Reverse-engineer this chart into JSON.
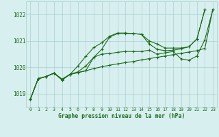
{
  "x": [
    0,
    1,
    2,
    3,
    4,
    5,
    6,
    7,
    8,
    9,
    10,
    11,
    12,
    13,
    14,
    15,
    16,
    17,
    18,
    19,
    20,
    21,
    22,
    23
  ],
  "line1": [
    1018.78,
    1019.57,
    1019.65,
    1019.78,
    1019.52,
    1019.73,
    1019.83,
    1020.05,
    1020.38,
    1020.68,
    1021.15,
    1021.28,
    1021.28,
    1021.28,
    1021.25,
    1020.88,
    1020.68,
    1020.63,
    1020.65,
    1020.7,
    1020.78,
    1021.08,
    1022.2,
    null
  ],
  "line2": [
    1018.78,
    1019.57,
    1019.65,
    1019.78,
    1019.52,
    1019.73,
    1020.05,
    1020.42,
    1020.75,
    1020.93,
    1021.18,
    1021.3,
    1021.3,
    1021.28,
    1021.25,
    1021.0,
    1020.88,
    1020.73,
    1020.73,
    1020.73,
    1020.78,
    1021.08,
    1022.2,
    null
  ],
  "line3": [
    1018.78,
    1019.57,
    1019.65,
    1019.78,
    1019.55,
    1019.73,
    1019.8,
    1019.87,
    1019.95,
    1020.02,
    1020.08,
    1020.13,
    1020.18,
    1020.22,
    1020.28,
    1020.33,
    1020.38,
    1020.43,
    1020.48,
    1020.53,
    1020.58,
    1020.63,
    1020.72,
    1022.2
  ],
  "line4": [
    1018.78,
    1019.57,
    1019.65,
    1019.78,
    1019.55,
    1019.73,
    1019.8,
    1019.87,
    1020.38,
    1020.5,
    1020.52,
    1020.57,
    1020.6,
    1020.6,
    1020.6,
    1020.65,
    1020.5,
    1020.55,
    1020.6,
    1020.32,
    1020.27,
    1020.43,
    1021.05,
    1022.2
  ],
  "line_color": "#1a6b1a",
  "bg_color": "#d8efef",
  "grid_color": "#9ec8c8",
  "ylabel_values": [
    1019,
    1020,
    1021,
    1022
  ],
  "xticks": [
    0,
    1,
    2,
    3,
    4,
    5,
    6,
    7,
    8,
    9,
    10,
    11,
    12,
    13,
    14,
    15,
    16,
    17,
    18,
    19,
    20,
    21,
    22,
    23
  ],
  "xlim": [
    -0.5,
    23.5
  ],
  "ylim": [
    1018.5,
    1022.5
  ],
  "xlabel": "Graphe pression niveau de la mer (hPa)"
}
